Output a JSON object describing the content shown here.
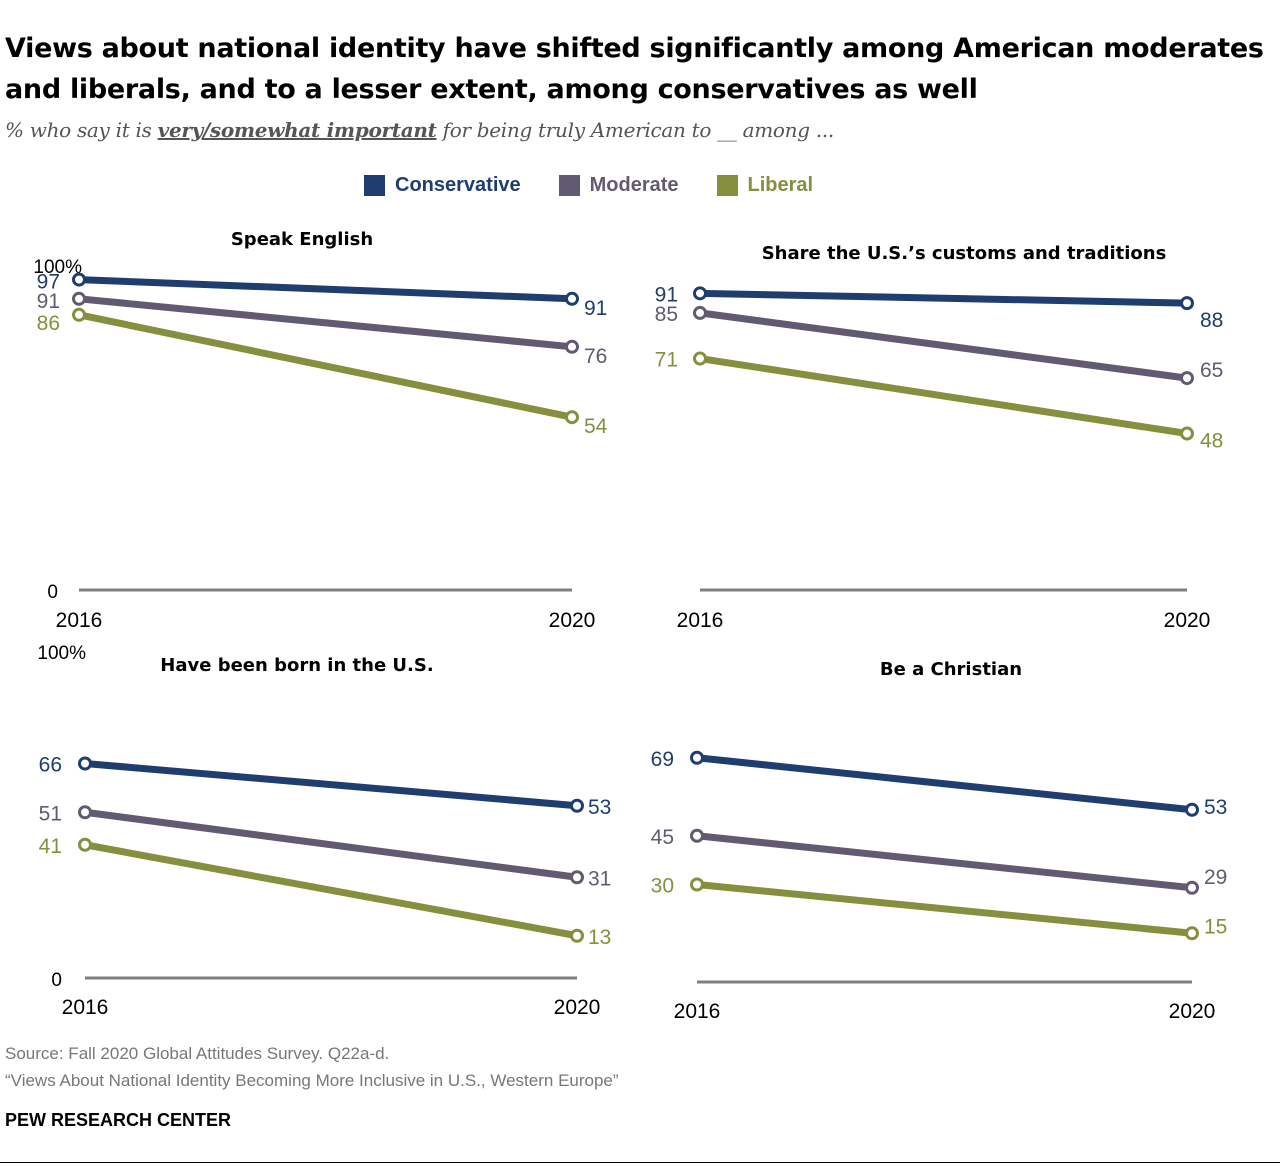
{
  "title": "Views about national identity have shifted significantly among American moderates and liberals, and to a lesser extent, among conservatives as well",
  "subtitle": {
    "prefix": "% who say it is ",
    "emphasis": "very/somewhat important",
    "suffix": " for being truly American to __ among ..."
  },
  "colors": {
    "conservative": "#1f3d6e",
    "moderate": "#625a70",
    "liberal": "#858f3d",
    "axis": "#7f7f7f"
  },
  "legend": [
    {
      "name": "Conservative",
      "color": "#1f3d6e"
    },
    {
      "name": "Moderate",
      "color": "#625a70"
    },
    {
      "name": "Liberal",
      "color": "#858f3d"
    }
  ],
  "chart_data": [
    {
      "type": "line",
      "title": "Speak English",
      "x": [
        "2016",
        "2020"
      ],
      "ylim": [
        0,
        100
      ],
      "ytick_labels": [
        "100%",
        "0"
      ],
      "series": [
        {
          "name": "Conservative",
          "values": [
            97,
            91
          ]
        },
        {
          "name": "Moderate",
          "values": [
            91,
            76
          ]
        },
        {
          "name": "Liberal",
          "values": [
            86,
            54
          ]
        }
      ]
    },
    {
      "type": "line",
      "title": "Share the U.S.’s customs and traditions",
      "x": [
        "2016",
        "2020"
      ],
      "ylim": [
        0,
        100
      ],
      "ytick_labels": [],
      "series": [
        {
          "name": "Conservative",
          "values": [
            91,
            88
          ]
        },
        {
          "name": "Moderate",
          "values": [
            85,
            65
          ]
        },
        {
          "name": "Liberal",
          "values": [
            71,
            48
          ]
        }
      ]
    },
    {
      "type": "line",
      "title": "Have been born in the U.S.",
      "x": [
        "2016",
        "2020"
      ],
      "ylim": [
        0,
        100
      ],
      "ytick_labels": [
        "100%",
        "0"
      ],
      "series": [
        {
          "name": "Conservative",
          "values": [
            66,
            53
          ]
        },
        {
          "name": "Moderate",
          "values": [
            51,
            31
          ]
        },
        {
          "name": "Liberal",
          "values": [
            41,
            13
          ]
        }
      ]
    },
    {
      "type": "line",
      "title": "Be a Christian",
      "x": [
        "2016",
        "2020"
      ],
      "ylim": [
        0,
        100
      ],
      "ytick_labels": [],
      "series": [
        {
          "name": "Conservative",
          "values": [
            69,
            53
          ]
        },
        {
          "name": "Moderate",
          "values": [
            45,
            29
          ]
        },
        {
          "name": "Liberal",
          "values": [
            30,
            15
          ]
        }
      ]
    }
  ],
  "footer": {
    "source": "Source: Fall 2020 Global Attitudes Survey. Q22a-d.",
    "report": "“Views About National Identity Becoming More Inclusive in U.S., Western Europe”",
    "brand": "PEW RESEARCH CENTER"
  }
}
